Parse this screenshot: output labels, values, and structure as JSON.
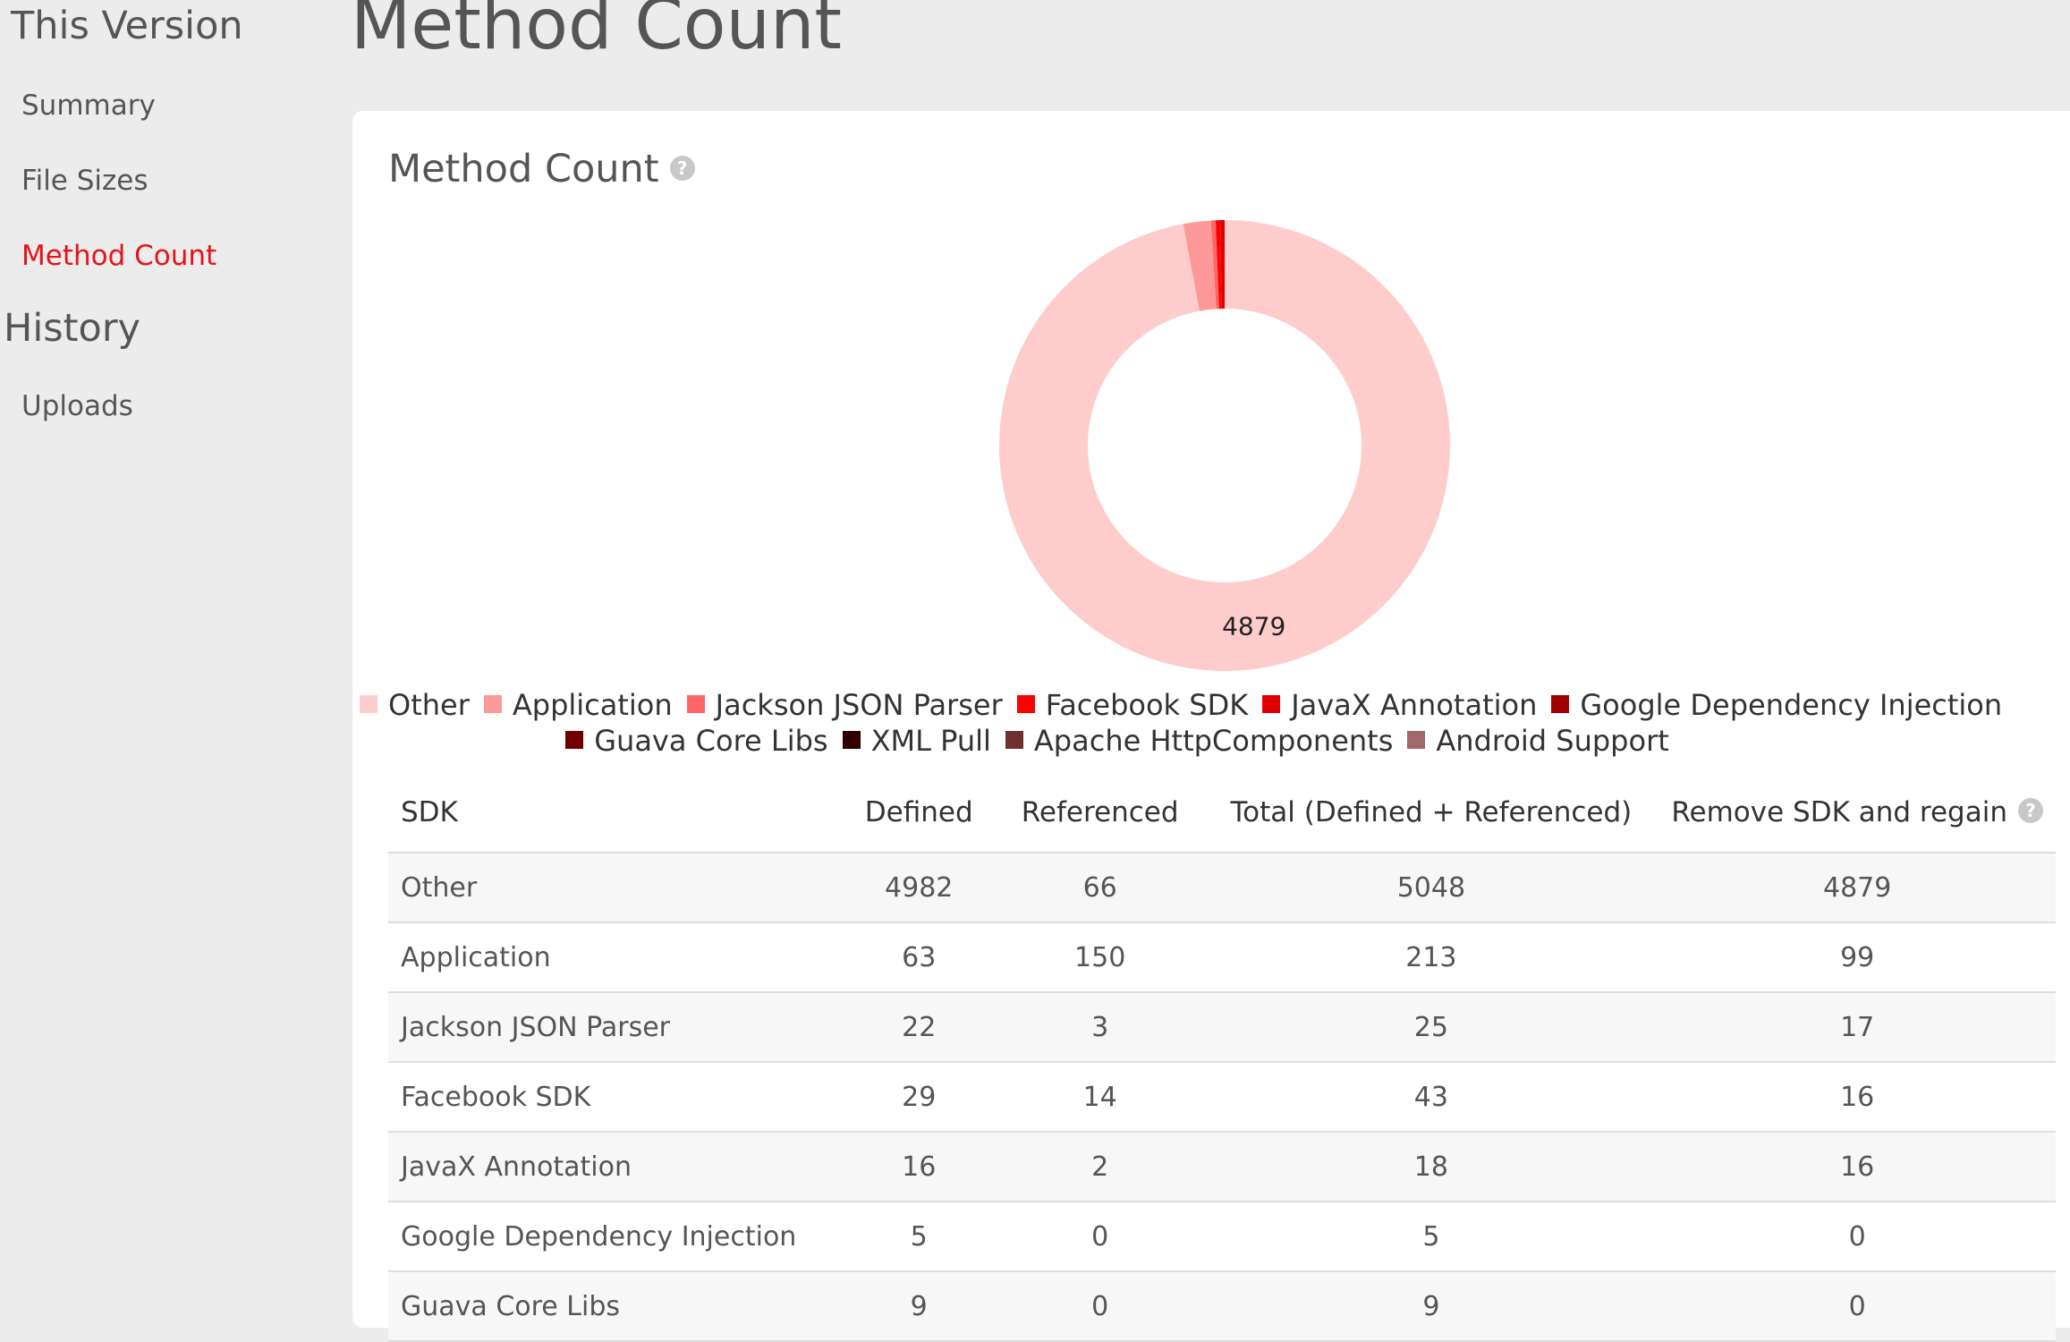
{
  "sidebar": {
    "section1": "This Version",
    "items": [
      {
        "label": "Summary"
      },
      {
        "label": "File Sizes"
      },
      {
        "label": "Method Count"
      }
    ],
    "section2": "History",
    "history_items": [
      {
        "label": "Uploads"
      }
    ]
  },
  "page": {
    "title": "Method Count"
  },
  "card": {
    "title": "Method Count",
    "help_glyph": "?"
  },
  "chart_data": {
    "type": "pie",
    "categories": [
      "Other",
      "Application",
      "Jackson JSON Parser",
      "Facebook SDK",
      "JavaX Annotation",
      "Google Dependency Injection",
      "Guava Core Libs",
      "XML Pull",
      "Apache HttpComponents",
      "Android Support"
    ],
    "values": [
      4879,
      99,
      17,
      16,
      16,
      0,
      0,
      0,
      0,
      0
    ],
    "colors": [
      "#ffcccc",
      "#ff9999",
      "#ff6666",
      "#ff0000",
      "#e00000",
      "#a00000",
      "#700000",
      "#300000",
      "#703030",
      "#a06868"
    ],
    "data_labels": [
      {
        "category": "Other",
        "text": "4879"
      }
    ],
    "legend_position": "bottom",
    "donut": true
  },
  "table": {
    "headers": [
      "SDK",
      "Defined",
      "Referenced",
      "Total (Defined + Referenced)",
      "Remove SDK and regain"
    ],
    "rows": [
      [
        "Other",
        "4982",
        "66",
        "5048",
        "4879"
      ],
      [
        "Application",
        "63",
        "150",
        "213",
        "99"
      ],
      [
        "Jackson JSON Parser",
        "22",
        "3",
        "25",
        "17"
      ],
      [
        "Facebook SDK",
        "29",
        "14",
        "43",
        "16"
      ],
      [
        "JavaX Annotation",
        "16",
        "2",
        "18",
        "16"
      ],
      [
        "Google Dependency Injection",
        "5",
        "0",
        "5",
        "0"
      ],
      [
        "Guava Core Libs",
        "9",
        "0",
        "9",
        "0"
      ]
    ]
  }
}
